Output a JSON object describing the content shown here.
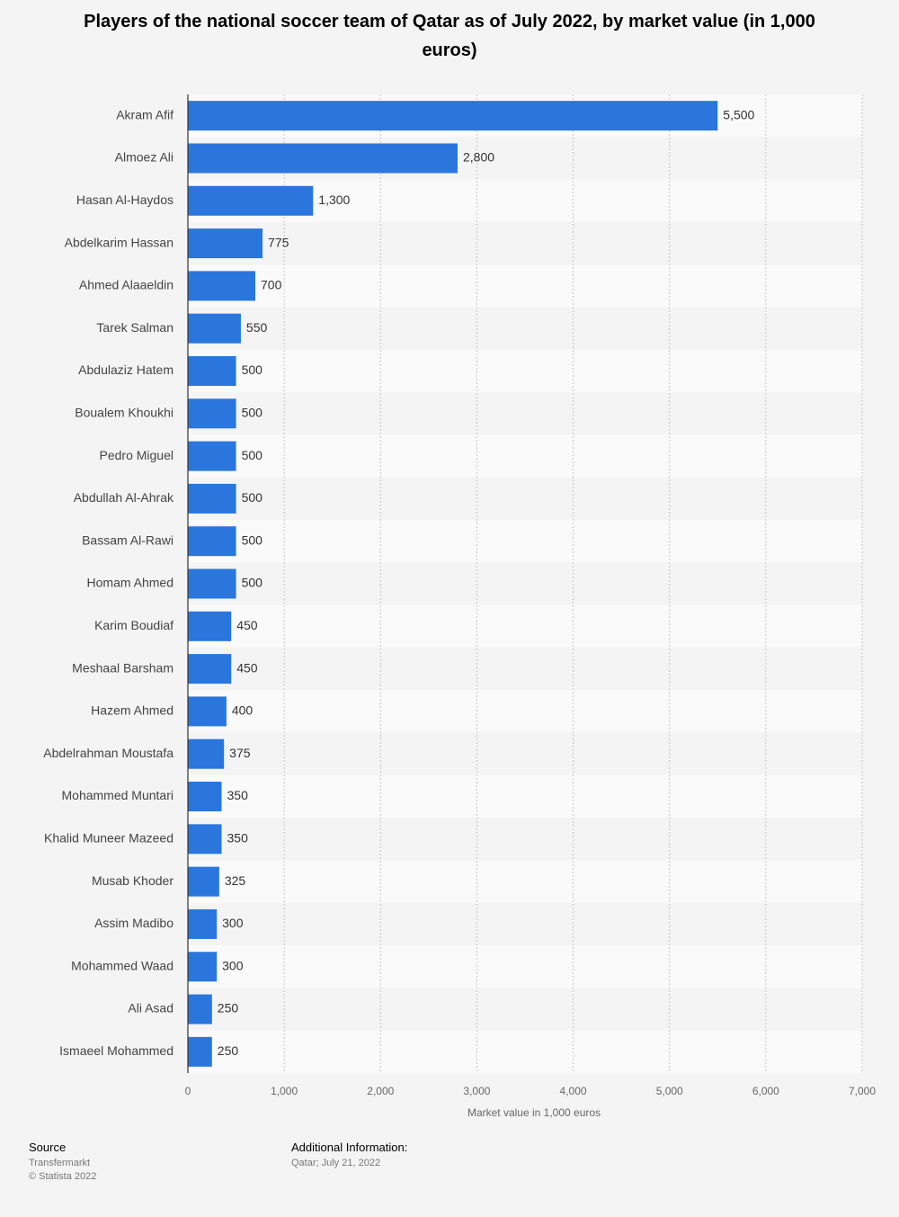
{
  "chart_data": {
    "type": "bar",
    "orientation": "horizontal",
    "title": "Players of the national soccer team of Qatar as of July 2022, by market value (in 1,000 euros)",
    "x_label": "Market value in 1,000 euros",
    "categories": [
      "Akram Afif",
      "Almoez Ali",
      "Hasan Al-Haydos",
      "Abdelkarim Hassan",
      "Ahmed Alaaeldin",
      "Tarek Salman",
      "Abdulaziz Hatem",
      "Boualem Khoukhi",
      "Pedro Miguel",
      "Abdullah Al-Ahrak",
      "Bassam Al-Rawi",
      "Homam Ahmed",
      "Karim Boudiaf",
      "Meshaal Barsham",
      "Hazem Ahmed",
      "Abdelrahman Moustafa",
      "Mohammed Muntari",
      "Khalid Muneer Mazeed",
      "Musab Khoder",
      "Assim Madibo",
      "Mohammed Waad",
      "Ali Asad",
      "Ismaeel Mohammed"
    ],
    "values": [
      5500,
      2800,
      1300,
      775,
      700,
      550,
      500,
      500,
      500,
      500,
      500,
      500,
      450,
      450,
      400,
      375,
      350,
      350,
      325,
      300,
      300,
      250,
      250
    ],
    "value_labels": [
      "5,500",
      "2,800",
      "1,300",
      "775",
      "700",
      "550",
      "500",
      "500",
      "500",
      "500",
      "500",
      "500",
      "450",
      "450",
      "400",
      "375",
      "350",
      "350",
      "325",
      "300",
      "300",
      "250",
      "250"
    ],
    "color": "#2a76dd",
    "xlim": [
      0,
      7000
    ],
    "xticks": [
      0,
      {
        "value": 1000,
        "label": "1,000"
      },
      {
        "value": 2000,
        "label": "2,000"
      },
      {
        "value": 3000,
        "label": "3,000"
      },
      {
        "value": 4000,
        "label": "4,000"
      },
      {
        "value": 5000,
        "label": "5,000"
      },
      {
        "value": 6000,
        "label": "6,000"
      },
      {
        "value": 7000,
        "label": "7,000"
      }
    ],
    "grid": true
  },
  "footer": {
    "source_heading": "Source",
    "source": "Transfermarkt",
    "copyright": "© Statista 2022",
    "info_heading": "Additional Information:",
    "info": "Qatar; July 21, 2022"
  }
}
